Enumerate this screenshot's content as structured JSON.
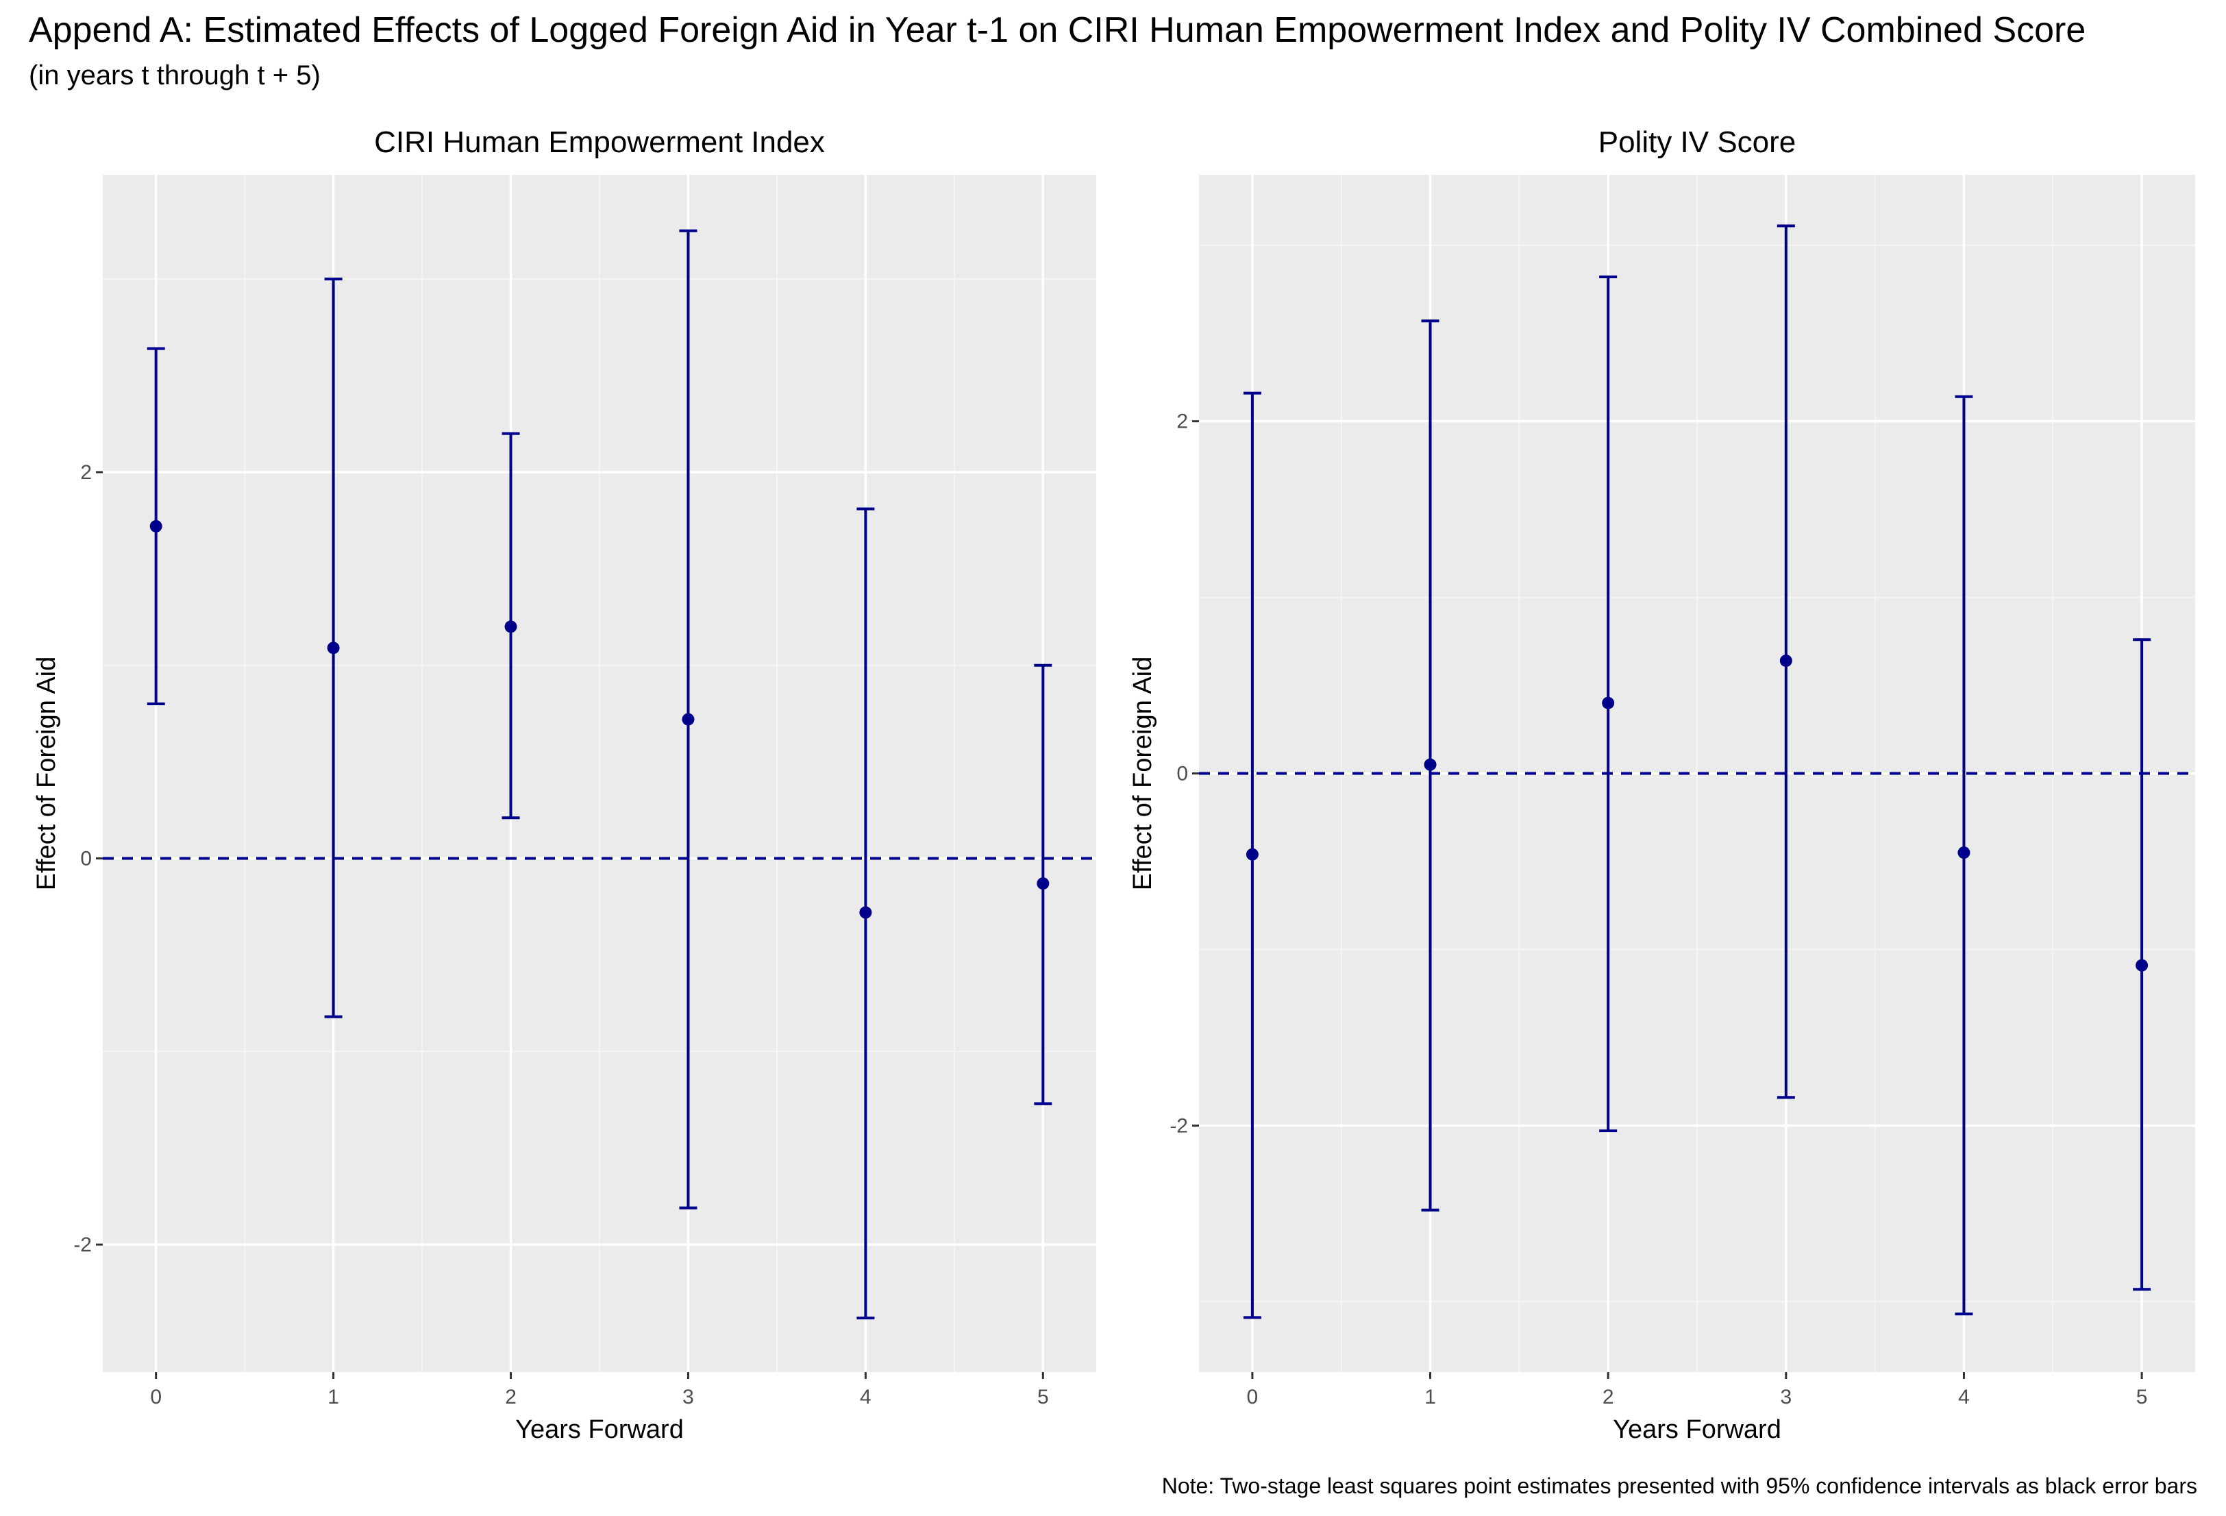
{
  "title": "Append A: Estimated Effects of Logged Foreign Aid in Year t-1 on CIRI Human Empowerment Index and Polity IV Combined Score",
  "subtitle": "(in years t through t + 5)",
  "note": "Note: Two-stage least squares point estimates presented with 95% confidence intervals as black error bars",
  "colors": {
    "series": "#00008B",
    "panel_bg": "#EBEBEB",
    "grid_major": "#FFFFFF",
    "grid_minor": "#F5F5F5"
  },
  "chart_data": [
    {
      "type": "scatter",
      "title": "CIRI Human Empowerment Index",
      "xlabel": "Years Forward",
      "ylabel": "Effect of Foreign Aid",
      "x": [
        0,
        1,
        2,
        3,
        4,
        5
      ],
      "x_ticks": [
        "0",
        "1",
        "2",
        "3",
        "4",
        "5"
      ],
      "y_ticks": [
        -2,
        0,
        2
      ],
      "y_tick_labels": [
        "-2",
        "0",
        "2"
      ],
      "xlim": [
        -0.3,
        5.3
      ],
      "ylim": [
        -2.66,
        3.54
      ],
      "estimate": [
        1.72,
        1.09,
        1.2,
        0.72,
        -0.28,
        -0.13
      ],
      "ci_lower": [
        0.8,
        -0.82,
        0.21,
        -1.81,
        -2.38,
        -1.27
      ],
      "ci_upper": [
        2.64,
        3.0,
        2.2,
        3.25,
        1.81,
        1.0
      ],
      "reference_line": 0
    },
    {
      "type": "scatter",
      "title": "Polity IV Score",
      "xlabel": "Years Forward",
      "ylabel": "Effect of Foreign Aid",
      "x": [
        0,
        1,
        2,
        3,
        4,
        5
      ],
      "x_ticks": [
        "0",
        "1",
        "2",
        "3",
        "4",
        "5"
      ],
      "y_ticks": [
        -2,
        0,
        2
      ],
      "y_tick_labels": [
        "-2",
        "0",
        "2"
      ],
      "xlim": [
        -0.3,
        5.3
      ],
      "ylim": [
        -3.4,
        3.4
      ],
      "estimate": [
        -0.46,
        0.05,
        0.4,
        0.64,
        -0.45,
        -1.09
      ],
      "ci_lower": [
        -3.09,
        -2.48,
        -2.03,
        -1.84,
        -3.07,
        -2.93
      ],
      "ci_upper": [
        2.16,
        2.57,
        2.82,
        3.11,
        2.14,
        0.76
      ],
      "reference_line": 0
    }
  ]
}
